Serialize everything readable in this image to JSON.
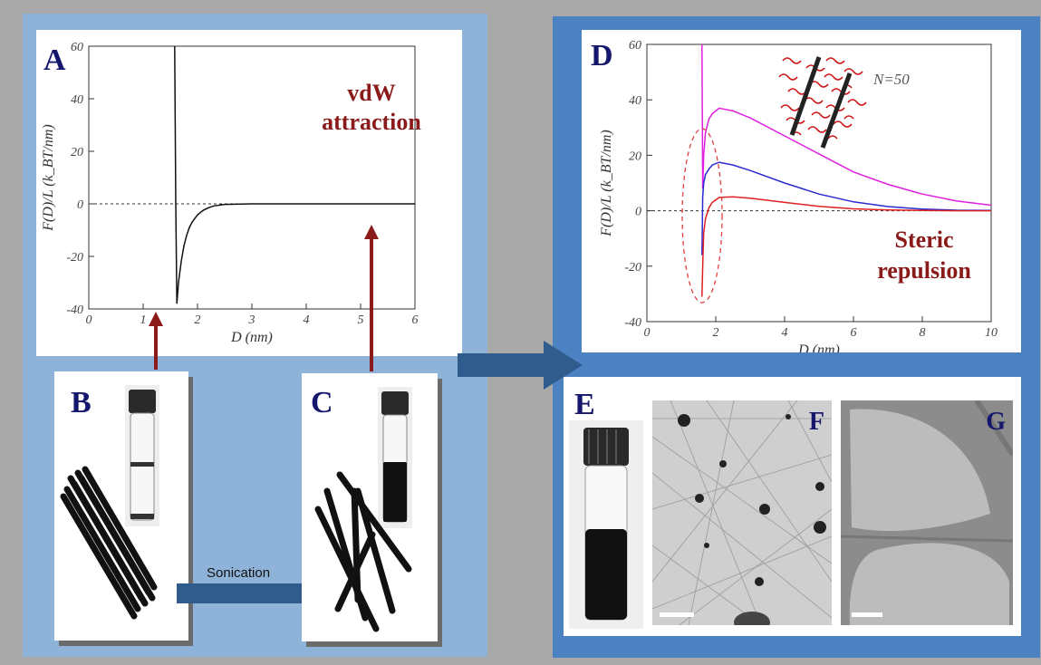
{
  "panels": {
    "A": {
      "letter": "A",
      "annotation_line1": "vdW",
      "annotation_line2": "attraction"
    },
    "B": {
      "letter": "B"
    },
    "C": {
      "letter": "C"
    },
    "D": {
      "letter": "D",
      "annotation_line1": "Steric",
      "annotation_line2": "repulsion",
      "polymer_label": "N=50"
    },
    "E": {
      "letter": "E"
    },
    "F": {
      "letter": "F"
    },
    "G": {
      "letter": "G"
    }
  },
  "process": {
    "label": "Sonication"
  },
  "colors": {
    "annotation": "#8b1a1a",
    "panel_letter": "#14176b",
    "arrow_red": "#8b1a1a",
    "arrow_blue": "#2f5c8c",
    "magenta": "#e020e0",
    "blue": "#2a2ad0",
    "red": "#e02020"
  },
  "chart_data": [
    {
      "type": "line",
      "panel": "A",
      "xlabel": "D (nm)",
      "ylabel": "F(D)/L (k_BT/nm)",
      "xlim": [
        0,
        6
      ],
      "ylim": [
        -40,
        60
      ],
      "xticks": [
        "0",
        "1",
        "2",
        "3",
        "4",
        "5",
        "6"
      ],
      "yticks": [
        "-40",
        "-20",
        "0",
        "20",
        "40",
        "60"
      ],
      "reference_line": 0,
      "series": [
        {
          "x": [
            1.58,
            1.6,
            1.62,
            1.65,
            1.7,
            1.75,
            1.8,
            1.85,
            1.9,
            2.0,
            2.1,
            2.2,
            2.3,
            2.5,
            3.0,
            4.0,
            6.0
          ],
          "y": [
            60,
            0,
            -38,
            -30,
            -22,
            -16,
            -12,
            -9,
            -7,
            -4.2,
            -2.5,
            -1.5,
            -0.8,
            -0.2,
            0,
            0,
            0
          ]
        }
      ]
    },
    {
      "type": "line",
      "panel": "D",
      "xlabel": "D (nm)",
      "ylabel": "F(D)/L (k_BT/nm)",
      "xlim": [
        0,
        10
      ],
      "ylim": [
        -40,
        60
      ],
      "xticks": [
        "0",
        "2",
        "4",
        "6",
        "8",
        "10"
      ],
      "yticks": [
        "-40",
        "-20",
        "0",
        "20",
        "40",
        "60"
      ],
      "reference_line": 0,
      "series": [
        {
          "color": "magenta",
          "x": [
            1.6,
            1.62,
            1.65,
            1.7,
            1.8,
            1.9,
            2.1,
            2.5,
            3,
            4,
            5,
            6,
            7,
            8,
            9,
            10
          ],
          "y": [
            60,
            8,
            20,
            28,
            33,
            35,
            37,
            36,
            33.5,
            27,
            20.5,
            14,
            9.5,
            6,
            3.5,
            2
          ]
        },
        {
          "color": "blue",
          "x": [
            1.6,
            1.62,
            1.65,
            1.7,
            1.8,
            1.9,
            2.1,
            2.5,
            3,
            4,
            5,
            6,
            7,
            8,
            9,
            10
          ],
          "y": [
            -16,
            5,
            10,
            13,
            15,
            16.5,
            17.5,
            16.5,
            14.5,
            10,
            6,
            3.2,
            1.5,
            0.6,
            0.2,
            0.1
          ]
        },
        {
          "color": "red",
          "x": [
            1.6,
            1.62,
            1.65,
            1.7,
            1.8,
            1.9,
            2.1,
            2.5,
            3,
            4,
            5,
            6,
            7,
            8,
            9,
            10
          ],
          "y": [
            -31,
            -20,
            -8,
            -3,
            1,
            3,
            4.8,
            5,
            4.5,
            3,
            1.6,
            0.7,
            0.3,
            0.1,
            0,
            0
          ]
        }
      ]
    }
  ]
}
